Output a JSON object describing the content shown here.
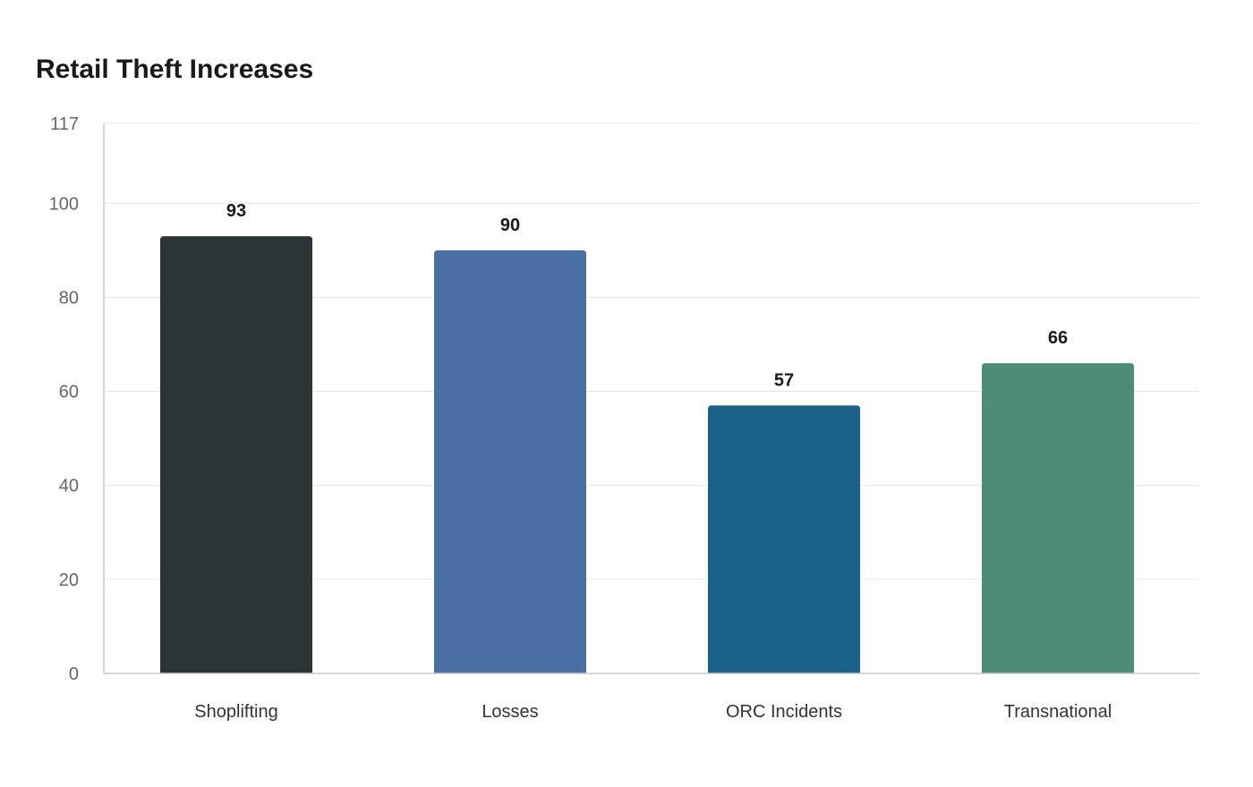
{
  "chart_data": {
    "type": "bar",
    "title": "Retail Theft Increases",
    "xlabel": "",
    "ylabel": "",
    "categories": [
      "Shoplifting",
      "Losses",
      "ORC Incidents",
      "Transnational"
    ],
    "values": [
      93,
      90,
      57,
      66
    ],
    "data_labels": [
      "93",
      "90",
      "57",
      "66"
    ],
    "colors": [
      "#2d3436",
      "#4a6fa5",
      "#1a6188",
      "#4e8c78"
    ],
    "ylim": [
      0,
      117
    ],
    "yticks": [
      0,
      20,
      40,
      60,
      80,
      100,
      117
    ],
    "grid": true,
    "legend": "none"
  }
}
